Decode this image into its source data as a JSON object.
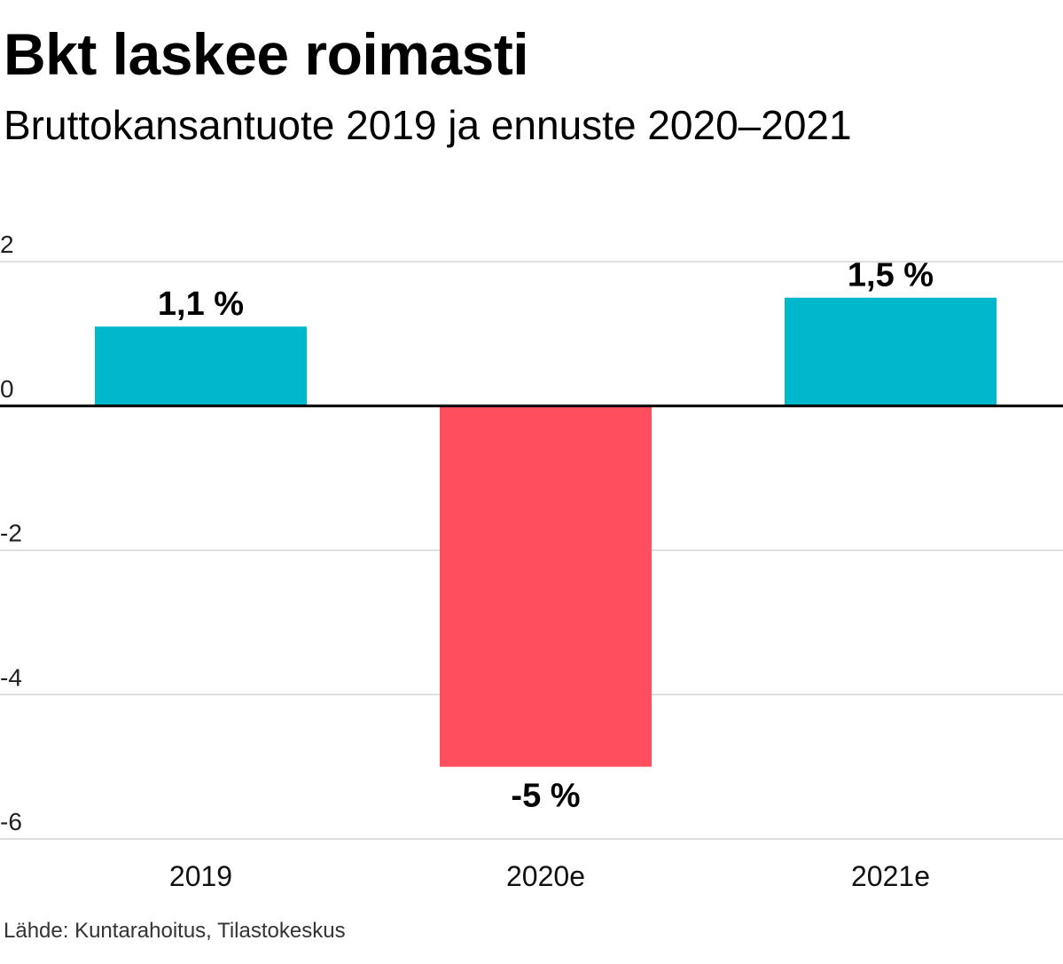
{
  "header": {
    "title": "Bkt laskee roimasti",
    "subtitle": "Bruttokansantuote 2019 ja ennuste 2020–2021"
  },
  "chart_data": {
    "type": "bar",
    "title": "Bkt laskee roimasti",
    "subtitle": "Bruttokansantuote 2019 ja ennuste 2020–2021",
    "categories": [
      "2019",
      "2020e",
      "2021e"
    ],
    "values": [
      1.1,
      -5,
      1.5
    ],
    "data_labels": [
      "1,1 %",
      "-5 %",
      "1,5 %"
    ],
    "y_ticks": [
      2,
      0,
      -2,
      -4,
      -6
    ],
    "y_tick_labels": [
      "2",
      "0",
      "-2",
      "-4",
      "-6"
    ],
    "ylim": [
      -6,
      2
    ],
    "grid": true,
    "colors": {
      "positive": "#00b7cb",
      "negative": "#ff4f5e",
      "grid": "#d3d3d3",
      "zero_line": "#000000"
    }
  },
  "footer": {
    "source": "Lähde: Kuntarahoitus, Tilastokeskus"
  }
}
